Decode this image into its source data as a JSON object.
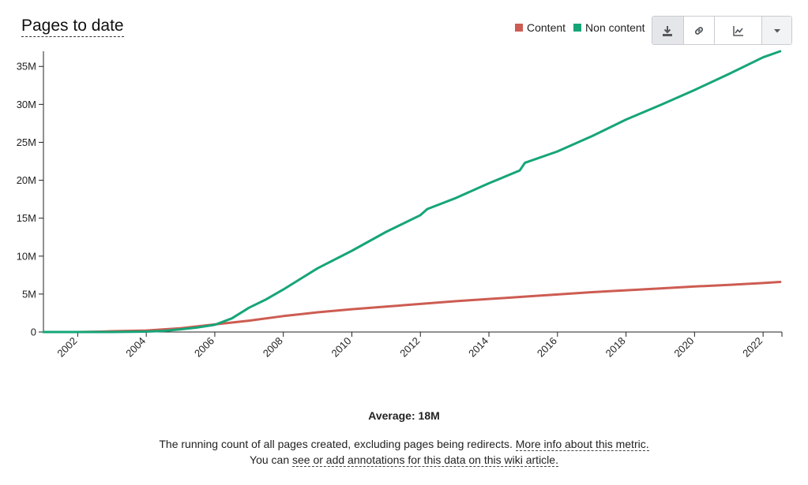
{
  "header": {
    "title": "Pages to date"
  },
  "legend": [
    {
      "label": "Content",
      "color": "#cd5c52"
    },
    {
      "label": "Non content",
      "color": "#16a578"
    }
  ],
  "toolbar": {
    "buttons": [
      "download-icon",
      "link-icon",
      "chart-line-icon",
      "chevron-down-icon"
    ],
    "active": "download-icon"
  },
  "footer": {
    "average_label": "Average:",
    "average_value": "18M",
    "description": "The running count of all pages created, excluding pages being redirects.",
    "more_info_link": "More info about this metric.",
    "annotations_prefix": "You can",
    "annotations_link": "see or add annotations for this data on this wiki article."
  },
  "chart_data": {
    "type": "line",
    "title": "Pages to date",
    "xlabel": "",
    "ylabel": "",
    "x_range": [
      2001.0,
      2022.55
    ],
    "ylim": [
      0,
      37
    ],
    "y_ticks": [
      0,
      5,
      10,
      15,
      20,
      25,
      30,
      35
    ],
    "y_tick_labels": [
      "0",
      "5M",
      "10M",
      "15M",
      "20M",
      "25M",
      "30M",
      "35M"
    ],
    "x_ticks": [
      2002,
      2004,
      2006,
      2008,
      2010,
      2012,
      2014,
      2016,
      2018,
      2020,
      2022
    ],
    "x_tick_labels": [
      "2002",
      "2004",
      "2006",
      "2008",
      "2010",
      "2012",
      "2014",
      "2016",
      "2018",
      "2020",
      "2022"
    ],
    "grid": false,
    "legend_position": "top-right",
    "series": [
      {
        "name": "Content",
        "color": "#cd5c52",
        "x": [
          2001.0,
          2002.0,
          2002.7,
          2003.0,
          2004.0,
          2005.0,
          2006.0,
          2007.0,
          2008.0,
          2009.0,
          2010.0,
          2011.0,
          2012.0,
          2013.0,
          2014.0,
          2015.0,
          2016.0,
          2017.0,
          2018.0,
          2019.0,
          2020.0,
          2021.0,
          2022.0,
          2022.5
        ],
        "values": [
          0,
          0,
          0.05,
          0.1,
          0.2,
          0.5,
          1.0,
          1.5,
          2.1,
          2.6,
          3.0,
          3.35,
          3.7,
          4.05,
          4.35,
          4.65,
          4.95,
          5.25,
          5.5,
          5.75,
          6.0,
          6.2,
          6.45,
          6.6
        ]
      },
      {
        "name": "Non content",
        "color": "#16a578",
        "x": [
          2001.0,
          2002.0,
          2003.0,
          2004.0,
          2004.5,
          2005.0,
          2005.5,
          2006.0,
          2006.5,
          2007.0,
          2007.5,
          2008.0,
          2008.5,
          2009.0,
          2010.0,
          2011.0,
          2012.0,
          2012.2,
          2013.0,
          2014.0,
          2014.9,
          2015.05,
          2016.0,
          2017.0,
          2018.0,
          2019.0,
          2020.0,
          2021.0,
          2022.0,
          2022.5
        ],
        "values": [
          0,
          0,
          0,
          0.05,
          0.15,
          0.35,
          0.6,
          0.95,
          1.8,
          3.2,
          4.3,
          5.6,
          7.0,
          8.4,
          10.7,
          13.2,
          15.4,
          16.2,
          17.6,
          19.6,
          21.3,
          22.3,
          23.8,
          25.8,
          28.0,
          29.9,
          31.9,
          34.0,
          36.2,
          37.0
        ]
      }
    ]
  }
}
